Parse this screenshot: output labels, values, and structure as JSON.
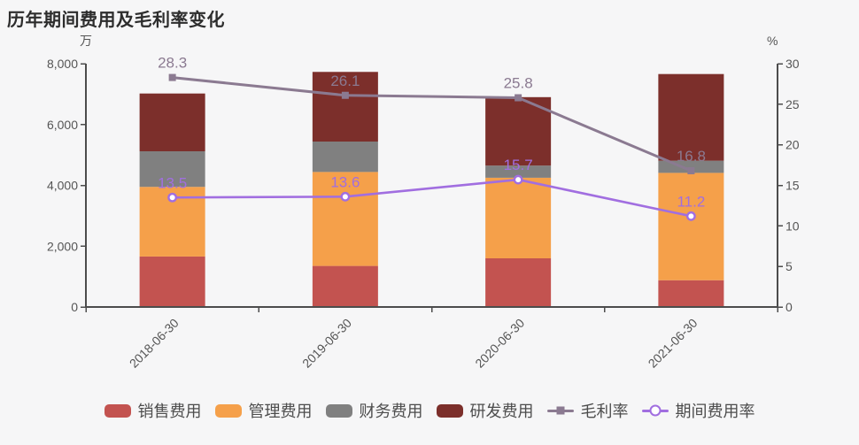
{
  "title": "历年期间费用及毛利率变化",
  "colors": {
    "background": "#f6f6f7",
    "axis_line": "#4c4c4c",
    "tick_label": "#555555",
    "title_text": "#2d2d2d",
    "legend_text": "#4d4d4d"
  },
  "chart_data": {
    "type": "bar+line",
    "title": "历年期间费用及毛利率变化",
    "categories": [
      "2018-06-30",
      "2019-06-30",
      "2020-06-30",
      "2021-06-30"
    ],
    "bar_series": [
      {
        "key": "sales-expense",
        "name": "销售费用",
        "color": "#c35350",
        "values": [
          1660,
          1350,
          1600,
          880
        ]
      },
      {
        "key": "management-expense",
        "name": "管理费用",
        "color": "#f5a04a",
        "values": [
          2290,
          3090,
          2650,
          3530
        ]
      },
      {
        "key": "finance-expense",
        "name": "财务费用",
        "color": "#808080",
        "values": [
          1170,
          1000,
          400,
          400
        ]
      },
      {
        "key": "rnd-expense",
        "name": "研发费用",
        "color": "#7c2f2b",
        "values": [
          1900,
          2290,
          2250,
          2850
        ]
      }
    ],
    "line_series": [
      {
        "key": "gross-margin",
        "name": "毛利率",
        "color": "#8b7a91",
        "marker": "square",
        "values": [
          28.3,
          26.1,
          25.8,
          16.8
        ],
        "labels": [
          "28.3",
          "26.1",
          "25.8",
          "16.8"
        ]
      },
      {
        "key": "period-expense-ratio",
        "name": "期间费用率",
        "color": "#a16ee0",
        "marker": "circle",
        "values": [
          13.5,
          13.6,
          15.7,
          11.2
        ],
        "labels": [
          "13.5",
          "13.6",
          "15.7",
          "11.2"
        ]
      }
    ],
    "left_axis": {
      "unit": "万",
      "min": 0,
      "max": 8000,
      "step": 2000,
      "tick_labels": [
        "0",
        "2,000",
        "4,000",
        "6,000",
        "8,000"
      ]
    },
    "right_axis": {
      "unit": "%",
      "min": 0,
      "max": 30,
      "step": 5,
      "tick_labels": [
        "0",
        "5",
        "10",
        "15",
        "20",
        "25",
        "30"
      ]
    },
    "grid": false,
    "legend_position": "bottom",
    "legend": [
      "销售费用",
      "管理费用",
      "财务费用",
      "研发费用",
      "毛利率",
      "期间费用率"
    ]
  }
}
